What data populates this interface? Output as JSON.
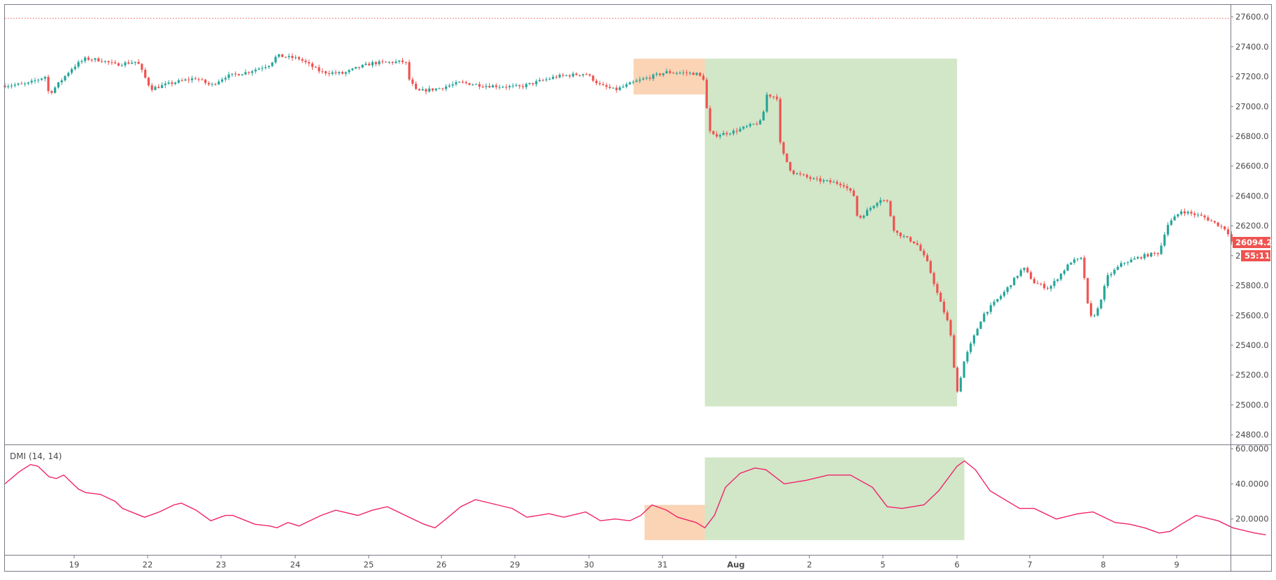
{
  "colors": {
    "up": "#26a69a",
    "down": "#ef5350",
    "dmi_line": "#f0226a",
    "box_orange": "#fad4b4",
    "box_green": "#d2e6c8",
    "price_line": "#ef5350",
    "border": "#787b86",
    "text": "#4a4a4a"
  },
  "chart_data": [
    {
      "type": "candlestick",
      "symbol_line_price": 27590,
      "y_ticks": [
        "27600.0",
        "27400.0",
        "27200.0",
        "27000.0",
        "26800.0",
        "26600.0",
        "26400.0",
        "26200.0",
        "26000.0",
        "25800.0",
        "25600.0",
        "25400.0",
        "25200.0",
        "25000.0",
        "24800.0"
      ],
      "ylim": [
        24740,
        27680
      ],
      "last_price": "26094.2",
      "countdown": "55:11",
      "x_labels": [
        "19",
        "22",
        "23",
        "24",
        "25",
        "26",
        "29",
        "30",
        "31",
        "Aug",
        "2",
        "5",
        "6",
        "7",
        "8",
        "9"
      ],
      "close_path": [
        [
          0.0,
          27140
        ],
        [
          0.3,
          27150
        ],
        [
          0.55,
          27200
        ],
        [
          0.6,
          27080
        ],
        [
          0.9,
          27250
        ],
        [
          1.0,
          27290
        ],
        [
          1.1,
          27320
        ],
        [
          1.3,
          27310
        ],
        [
          1.5,
          27280
        ],
        [
          1.8,
          27300
        ],
        [
          1.95,
          27150
        ],
        [
          2.0,
          27120
        ],
        [
          2.3,
          27160
        ],
        [
          2.6,
          27190
        ],
        [
          2.8,
          27140
        ],
        [
          3.0,
          27200
        ],
        [
          3.3,
          27230
        ],
        [
          3.6,
          27280
        ],
        [
          3.7,
          27340
        ],
        [
          4.0,
          27320
        ],
        [
          4.3,
          27230
        ],
        [
          4.6,
          27220
        ],
        [
          4.8,
          27260
        ],
        [
          5.0,
          27290
        ],
        [
          5.45,
          27300
        ],
        [
          5.5,
          27180
        ],
        [
          5.6,
          27100
        ],
        [
          5.9,
          27120
        ],
        [
          6.2,
          27160
        ],
        [
          6.5,
          27140
        ],
        [
          7.0,
          27130
        ],
        [
          7.5,
          27200
        ],
        [
          7.9,
          27220
        ],
        [
          8.1,
          27140
        ],
        [
          8.3,
          27110
        ],
        [
          8.6,
          27170
        ],
        [
          9.0,
          27230
        ],
        [
          9.4,
          27220
        ],
        [
          9.52,
          27180
        ],
        [
          9.55,
          26950
        ],
        [
          9.6,
          26800
        ],
        [
          9.9,
          26830
        ],
        [
          10.3,
          26900
        ],
        [
          10.35,
          27080
        ],
        [
          10.5,
          27060
        ],
        [
          10.55,
          26720
        ],
        [
          10.7,
          26560
        ],
        [
          11.0,
          26510
        ],
        [
          11.4,
          26480
        ],
        [
          11.55,
          26400
        ],
        [
          11.6,
          26240
        ],
        [
          11.9,
          26380
        ],
        [
          12.0,
          26360
        ],
        [
          12.1,
          26160
        ],
        [
          12.4,
          26080
        ],
        [
          12.55,
          25950
        ],
        [
          12.7,
          25720
        ],
        [
          12.85,
          25520
        ],
        [
          12.95,
          25080
        ],
        [
          13.05,
          25300
        ],
        [
          13.3,
          25600
        ],
        [
          13.6,
          25760
        ],
        [
          13.85,
          25920
        ],
        [
          14.0,
          25820
        ],
        [
          14.2,
          25780
        ],
        [
          14.5,
          25960
        ],
        [
          14.65,
          25980
        ],
        [
          14.75,
          25580
        ],
        [
          14.85,
          25620
        ],
        [
          15.0,
          25860
        ],
        [
          15.2,
          25950
        ],
        [
          15.5,
          26000
        ],
        [
          15.7,
          26020
        ],
        [
          15.8,
          26200
        ],
        [
          16.0,
          26300
        ],
        [
          16.3,
          26260
        ],
        [
          16.6,
          26180
        ],
        [
          16.72,
          26094
        ]
      ],
      "zones": [
        {
          "color": "orange",
          "x0": 8.55,
          "x1": 9.52,
          "y0": 27080,
          "y1": 27320
        },
        {
          "color": "green",
          "x0": 9.52,
          "x1": 12.95,
          "y0": 24990,
          "y1": 27320
        }
      ]
    },
    {
      "type": "line",
      "title": "DMI (14, 14)",
      "y_ticks": [
        "60.0000",
        "40.0000",
        "20.0000"
      ],
      "ylim": [
        0,
        62
      ],
      "points": [
        [
          0.0,
          40
        ],
        [
          0.2,
          47
        ],
        [
          0.35,
          51
        ],
        [
          0.45,
          50
        ],
        [
          0.6,
          44
        ],
        [
          0.7,
          43
        ],
        [
          0.8,
          45
        ],
        [
          1.0,
          37
        ],
        [
          1.1,
          35
        ],
        [
          1.3,
          34
        ],
        [
          1.5,
          30
        ],
        [
          1.6,
          26
        ],
        [
          1.9,
          21
        ],
        [
          2.1,
          24
        ],
        [
          2.3,
          28
        ],
        [
          2.4,
          29
        ],
        [
          2.6,
          25
        ],
        [
          2.8,
          19
        ],
        [
          3.0,
          22
        ],
        [
          3.1,
          22
        ],
        [
          3.4,
          17
        ],
        [
          3.6,
          16
        ],
        [
          3.7,
          15
        ],
        [
          3.85,
          18
        ],
        [
          4.0,
          16
        ],
        [
          4.3,
          22
        ],
        [
          4.5,
          25
        ],
        [
          4.8,
          22
        ],
        [
          5.0,
          25
        ],
        [
          5.2,
          27
        ],
        [
          5.5,
          21
        ],
        [
          5.7,
          17
        ],
        [
          5.85,
          15
        ],
        [
          6.0,
          20
        ],
        [
          6.2,
          27
        ],
        [
          6.4,
          31
        ],
        [
          6.6,
          29
        ],
        [
          6.9,
          26
        ],
        [
          7.1,
          21
        ],
        [
          7.4,
          23
        ],
        [
          7.6,
          21
        ],
        [
          7.9,
          24
        ],
        [
          8.1,
          19
        ],
        [
          8.3,
          20
        ],
        [
          8.5,
          19
        ],
        [
          8.65,
          22
        ],
        [
          8.8,
          28
        ],
        [
          9.0,
          25
        ],
        [
          9.15,
          21
        ],
        [
          9.4,
          18
        ],
        [
          9.52,
          15
        ],
        [
          9.65,
          22
        ],
        [
          9.8,
          38
        ],
        [
          10.0,
          46
        ],
        [
          10.2,
          49
        ],
        [
          10.35,
          48
        ],
        [
          10.6,
          40
        ],
        [
          10.9,
          42
        ],
        [
          11.2,
          45
        ],
        [
          11.5,
          45
        ],
        [
          11.8,
          38
        ],
        [
          12.0,
          27
        ],
        [
          12.2,
          26
        ],
        [
          12.5,
          28
        ],
        [
          12.7,
          36
        ],
        [
          12.95,
          50
        ],
        [
          13.05,
          53
        ],
        [
          13.2,
          48
        ],
        [
          13.4,
          36
        ],
        [
          13.8,
          26
        ],
        [
          14.0,
          26
        ],
        [
          14.3,
          20
        ],
        [
          14.6,
          23
        ],
        [
          14.8,
          24
        ],
        [
          15.1,
          18
        ],
        [
          15.3,
          17
        ],
        [
          15.5,
          15
        ],
        [
          15.7,
          12
        ],
        [
          15.85,
          13
        ],
        [
          16.0,
          17
        ],
        [
          16.2,
          22
        ],
        [
          16.5,
          19
        ],
        [
          16.7,
          15
        ],
        [
          16.9,
          13
        ],
        [
          17.0,
          12
        ],
        [
          17.15,
          11
        ]
      ],
      "zones": [
        {
          "color": "orange",
          "x0": 8.7,
          "x1": 9.52,
          "y0": 8,
          "y1": 28
        },
        {
          "color": "green",
          "x0": 9.52,
          "x1": 13.05,
          "y0": 8,
          "y1": 55
        }
      ]
    }
  ]
}
